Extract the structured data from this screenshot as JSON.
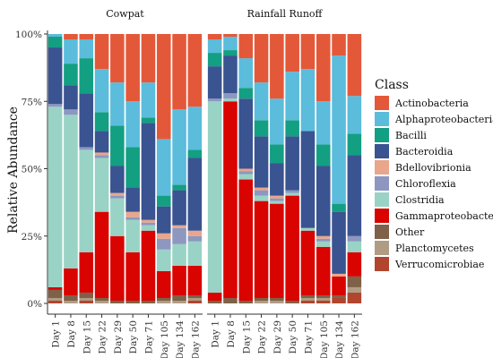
{
  "chart_data": {
    "type": "bar",
    "stacked": true,
    "ylabel": "Relative Abundance",
    "ylim": [
      0,
      1
    ],
    "yticks": [
      0,
      0.25,
      0.5,
      0.75,
      1.0
    ],
    "ytick_labels": [
      "0%",
      "25%",
      "50%",
      "75%",
      "100%"
    ],
    "categories": [
      "Day 1",
      "Day 8",
      "Day 15",
      "Day 22",
      "Day 29",
      "Day 50",
      "Day 71",
      "Day 105",
      "Day 134",
      "Day 162"
    ],
    "legend_title": "Class",
    "legend_position": "right",
    "classes": [
      {
        "name": "Actinobacteria",
        "color": "#E4583A"
      },
      {
        "name": "Alphaproteobacteria",
        "color": "#5BBCDC"
      },
      {
        "name": "Bacilli",
        "color": "#139F82"
      },
      {
        "name": "Bacteroidia",
        "color": "#3A5391"
      },
      {
        "name": "Bdellovibrionia",
        "color": "#E9A68B"
      },
      {
        "name": "Chloroflexia",
        "color": "#8D97C0"
      },
      {
        "name": "Clostridia",
        "color": "#99D3C5"
      },
      {
        "name": "Gammaproteobacteria",
        "color": "#D90400"
      },
      {
        "name": "Other",
        "color": "#7E6148"
      },
      {
        "name": "Planctomycetes",
        "color": "#B09C85"
      },
      {
        "name": "Verrucomicrobiae",
        "color": "#B2452E"
      }
    ],
    "stack_order_bottom_to_top": [
      "Verrucomicrobiae",
      "Planctomycetes",
      "Other",
      "Gammaproteobacteria",
      "Clostridia",
      "Chloroflexia",
      "Bdellovibrionia",
      "Bacteroidia",
      "Bacilli",
      "Alphaproteobacteria",
      "Actinobacteria"
    ],
    "panels": [
      {
        "title": "Cowpat",
        "samples": [
          {
            "Verrucomicrobiae": 0.01,
            "Planctomycetes": 0.01,
            "Other": 0.03,
            "Gammaproteobacteria": 0.01,
            "Clostridia": 0.67,
            "Chloroflexia": 0.01,
            "Bdellovibrionia": 0.0,
            "Bacteroidia": 0.21,
            "Bacilli": 0.04,
            "Alphaproteobacteria": 0.01,
            "Actinobacteria": 0.0
          },
          {
            "Verrucomicrobiae": 0.0,
            "Planctomycetes": 0.01,
            "Other": 0.02,
            "Gammaproteobacteria": 0.1,
            "Clostridia": 0.57,
            "Chloroflexia": 0.02,
            "Bdellovibrionia": 0.0,
            "Bacteroidia": 0.09,
            "Bacilli": 0.08,
            "Alphaproteobacteria": 0.09,
            "Actinobacteria": 0.02
          },
          {
            "Verrucomicrobiae": 0.01,
            "Planctomycetes": 0.01,
            "Other": 0.02,
            "Gammaproteobacteria": 0.15,
            "Clostridia": 0.38,
            "Chloroflexia": 0.01,
            "Bdellovibrionia": 0.0,
            "Bacteroidia": 0.2,
            "Bacilli": 0.13,
            "Alphaproteobacteria": 0.07,
            "Actinobacteria": 0.02
          },
          {
            "Verrucomicrobiae": 0.0,
            "Planctomycetes": 0.01,
            "Other": 0.01,
            "Gammaproteobacteria": 0.32,
            "Clostridia": 0.2,
            "Chloroflexia": 0.01,
            "Bdellovibrionia": 0.01,
            "Bacteroidia": 0.08,
            "Bacilli": 0.07,
            "Alphaproteobacteria": 0.16,
            "Actinobacteria": 0.13
          },
          {
            "Verrucomicrobiae": 0.0,
            "Planctomycetes": 0.0,
            "Other": 0.01,
            "Gammaproteobacteria": 0.24,
            "Clostridia": 0.14,
            "Chloroflexia": 0.01,
            "Bdellovibrionia": 0.01,
            "Bacteroidia": 0.1,
            "Bacilli": 0.15,
            "Alphaproteobacteria": 0.16,
            "Actinobacteria": 0.18
          },
          {
            "Verrucomicrobiae": 0.0,
            "Planctomycetes": 0.0,
            "Other": 0.01,
            "Gammaproteobacteria": 0.18,
            "Clostridia": 0.12,
            "Chloroflexia": 0.01,
            "Bdellovibrionia": 0.02,
            "Bacteroidia": 0.09,
            "Bacilli": 0.15,
            "Alphaproteobacteria": 0.17,
            "Actinobacteria": 0.25
          },
          {
            "Verrucomicrobiae": 0.0,
            "Planctomycetes": 0.0,
            "Other": 0.01,
            "Gammaproteobacteria": 0.26,
            "Clostridia": 0.02,
            "Chloroflexia": 0.01,
            "Bdellovibrionia": 0.01,
            "Bacteroidia": 0.36,
            "Bacilli": 0.02,
            "Alphaproteobacteria": 0.13,
            "Actinobacteria": 0.18
          },
          {
            "Verrucomicrobiae": 0.0,
            "Planctomycetes": 0.01,
            "Other": 0.01,
            "Gammaproteobacteria": 0.1,
            "Clostridia": 0.08,
            "Chloroflexia": 0.04,
            "Bdellovibrionia": 0.02,
            "Bacteroidia": 0.1,
            "Bacilli": 0.04,
            "Alphaproteobacteria": 0.21,
            "Actinobacteria": 0.39
          },
          {
            "Verrucomicrobiae": 0.0,
            "Planctomycetes": 0.01,
            "Other": 0.02,
            "Gammaproteobacteria": 0.11,
            "Clostridia": 0.08,
            "Chloroflexia": 0.06,
            "Bdellovibrionia": 0.01,
            "Bacteroidia": 0.13,
            "Bacilli": 0.02,
            "Alphaproteobacteria": 0.28,
            "Actinobacteria": 0.28
          },
          {
            "Verrucomicrobiae": 0.01,
            "Planctomycetes": 0.01,
            "Other": 0.01,
            "Gammaproteobacteria": 0.11,
            "Clostridia": 0.09,
            "Chloroflexia": 0.02,
            "Bdellovibrionia": 0.02,
            "Bacteroidia": 0.27,
            "Bacilli": 0.03,
            "Alphaproteobacteria": 0.16,
            "Actinobacteria": 0.27
          }
        ]
      },
      {
        "title": "Rainfall Runoff",
        "samples": [
          {
            "Verrucomicrobiae": 0.0,
            "Planctomycetes": 0.0,
            "Other": 0.01,
            "Gammaproteobacteria": 0.03,
            "Clostridia": 0.71,
            "Chloroflexia": 0.01,
            "Bdellovibrionia": 0.0,
            "Bacteroidia": 0.12,
            "Bacilli": 0.05,
            "Alphaproteobacteria": 0.05,
            "Actinobacteria": 0.02
          },
          {
            "Verrucomicrobiae": 0.0,
            "Planctomycetes": 0.0,
            "Other": 0.02,
            "Gammaproteobacteria": 0.73,
            "Clostridia": 0.01,
            "Chloroflexia": 0.02,
            "Bdellovibrionia": 0.0,
            "Bacteroidia": 0.14,
            "Bacilli": 0.02,
            "Alphaproteobacteria": 0.05,
            "Actinobacteria": 0.01
          },
          {
            "Verrucomicrobiae": 0.0,
            "Planctomycetes": 0.0,
            "Other": 0.01,
            "Gammaproteobacteria": 0.45,
            "Clostridia": 0.02,
            "Chloroflexia": 0.01,
            "Bdellovibrionia": 0.01,
            "Bacteroidia": 0.26,
            "Bacilli": 0.04,
            "Alphaproteobacteria": 0.11,
            "Actinobacteria": 0.09
          },
          {
            "Verrucomicrobiae": 0.0,
            "Planctomycetes": 0.01,
            "Other": 0.01,
            "Gammaproteobacteria": 0.36,
            "Clostridia": 0.02,
            "Chloroflexia": 0.02,
            "Bdellovibrionia": 0.01,
            "Bacteroidia": 0.19,
            "Bacilli": 0.06,
            "Alphaproteobacteria": 0.14,
            "Actinobacteria": 0.18
          },
          {
            "Verrucomicrobiae": 0.0,
            "Planctomycetes": 0.01,
            "Other": 0.01,
            "Gammaproteobacteria": 0.35,
            "Clostridia": 0.01,
            "Chloroflexia": 0.01,
            "Bdellovibrionia": 0.01,
            "Bacteroidia": 0.12,
            "Bacilli": 0.07,
            "Alphaproteobacteria": 0.17,
            "Actinobacteria": 0.24
          },
          {
            "Verrucomicrobiae": 0.0,
            "Planctomycetes": 0.0,
            "Other": 0.01,
            "Gammaproteobacteria": 0.39,
            "Clostridia": 0.01,
            "Chloroflexia": 0.01,
            "Bdellovibrionia": 0.0,
            "Bacteroidia": 0.2,
            "Bacilli": 0.06,
            "Alphaproteobacteria": 0.18,
            "Actinobacteria": 0.14
          },
          {
            "Verrucomicrobiae": 0.01,
            "Planctomycetes": 0.01,
            "Other": 0.01,
            "Gammaproteobacteria": 0.24,
            "Clostridia": 0.01,
            "Chloroflexia": 0.0,
            "Bdellovibrionia": 0.0,
            "Bacteroidia": 0.36,
            "Bacilli": 0.0,
            "Alphaproteobacteria": 0.23,
            "Actinobacteria": 0.13
          },
          {
            "Verrucomicrobiae": 0.01,
            "Planctomycetes": 0.01,
            "Other": 0.01,
            "Gammaproteobacteria": 0.18,
            "Clostridia": 0.02,
            "Chloroflexia": 0.01,
            "Bdellovibrionia": 0.01,
            "Bacteroidia": 0.26,
            "Bacilli": 0.08,
            "Alphaproteobacteria": 0.16,
            "Actinobacteria": 0.25
          },
          {
            "Verrucomicrobiae": 0.02,
            "Planctomycetes": 0.0,
            "Other": 0.01,
            "Gammaproteobacteria": 0.07,
            "Clostridia": 0.0,
            "Chloroflexia": 0.0,
            "Bdellovibrionia": 0.01,
            "Bacteroidia": 0.23,
            "Bacilli": 0.03,
            "Alphaproteobacteria": 0.55,
            "Actinobacteria": 0.08
          },
          {
            "Verrucomicrobiae": 0.04,
            "Planctomycetes": 0.02,
            "Other": 0.04,
            "Gammaproteobacteria": 0.09,
            "Clostridia": 0.04,
            "Chloroflexia": 0.02,
            "Bdellovibrionia": 0.0,
            "Bacteroidia": 0.3,
            "Bacilli": 0.08,
            "Alphaproteobacteria": 0.14,
            "Actinobacteria": 0.23
          }
        ]
      }
    ]
  }
}
